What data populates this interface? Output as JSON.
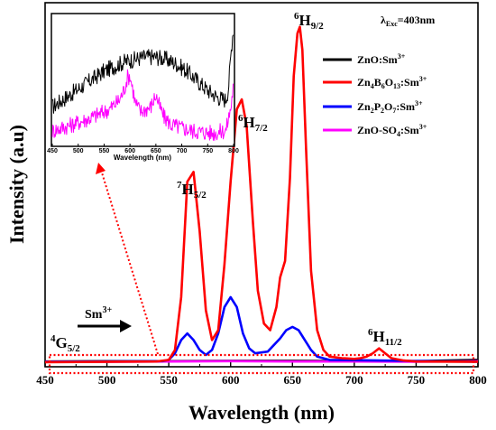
{
  "chart_data": {
    "type": "line",
    "xlabel": "Wavelength (nm)",
    "ylabel": "Intensity (a.u)",
    "xlim": [
      450,
      800
    ],
    "ylim": [
      0,
      1
    ],
    "x_ticks": [
      450,
      500,
      550,
      600,
      650,
      700,
      750,
      800
    ],
    "y_ticks_shown": false,
    "grid": false,
    "excitation": {
      "lambda": "λ",
      "sub": "Exc",
      "value": "=403nm"
    },
    "peak_labels": [
      {
        "pre": "7",
        "main": "H",
        "sub": "5/2",
        "x": 570
      },
      {
        "pre": "6",
        "main": "H",
        "sub": "7/2",
        "x": 609
      },
      {
        "pre": "6",
        "main": "H",
        "sub": "9/2",
        "x": 656
      },
      {
        "pre": "6",
        "main": "H",
        "sub": "11/2",
        "x": 720
      }
    ],
    "ground_state": {
      "pre": "4",
      "main": "G",
      "sub": "5/2"
    },
    "ion_label": {
      "main": "Sm",
      "sup": "3+"
    },
    "series": [
      {
        "name": "ZnO:Sm3+",
        "legend": {
          "main": "ZnO:Sm",
          "sup": "3+"
        },
        "color": "#000000",
        "x": [
          450,
          500,
          550,
          600,
          650,
          700,
          750,
          800
        ],
        "y": [
          0.005,
          0.006,
          0.006,
          0.007,
          0.007,
          0.006,
          0.006,
          0.01
        ]
      },
      {
        "name": "Zn4B6O13:Sm3+",
        "legend": {
          "parts": [
            "Zn",
            "4",
            "B",
            "6",
            "O",
            "13",
            ":Sm"
          ],
          "sup": "3+"
        },
        "color": "#ff0000",
        "x": [
          450,
          540,
          550,
          555,
          560,
          565,
          570,
          575,
          580,
          585,
          590,
          595,
          600,
          605,
          609,
          613,
          618,
          622,
          627,
          632,
          637,
          640,
          644,
          648,
          651,
          654,
          656,
          658,
          661,
          665,
          670,
          675,
          680,
          690,
          700,
          705,
          710,
          715,
          720,
          725,
          730,
          740,
          750,
          800
        ],
        "y": [
          0.003,
          0.005,
          0.01,
          0.04,
          0.2,
          0.55,
          0.58,
          0.4,
          0.16,
          0.07,
          0.1,
          0.3,
          0.55,
          0.77,
          0.8,
          0.72,
          0.43,
          0.22,
          0.12,
          0.1,
          0.17,
          0.26,
          0.31,
          0.56,
          0.87,
          1.0,
          1.02,
          0.95,
          0.65,
          0.28,
          0.1,
          0.04,
          0.02,
          0.015,
          0.013,
          0.015,
          0.02,
          0.03,
          0.045,
          0.03,
          0.015,
          0.008,
          0.005,
          0.004
        ]
      },
      {
        "name": "Zn2P2O7:Sm3+",
        "legend": {
          "parts": [
            "Zn",
            "2",
            "P",
            "2",
            "O",
            "7",
            ":Sm"
          ],
          "sup": "3+"
        },
        "color": "#0000ff",
        "x": [
          450,
          545,
          550,
          555,
          560,
          565,
          570,
          575,
          580,
          585,
          590,
          595,
          600,
          605,
          610,
          615,
          620,
          630,
          640,
          645,
          650,
          655,
          660,
          665,
          670,
          680,
          800
        ],
        "y": [
          0.004,
          0.006,
          0.01,
          0.03,
          0.07,
          0.09,
          0.07,
          0.04,
          0.025,
          0.04,
          0.09,
          0.17,
          0.2,
          0.17,
          0.09,
          0.045,
          0.03,
          0.035,
          0.075,
          0.1,
          0.11,
          0.1,
          0.07,
          0.04,
          0.02,
          0.01,
          0.004
        ]
      },
      {
        "name": "ZnO-SO4:Sm3+",
        "legend": {
          "parts": [
            "ZnO-SO",
            "4",
            ":Sm"
          ],
          "sup": "3+"
        },
        "color": "#ff00ff",
        "x": [
          450,
          500,
          550,
          600,
          650,
          700,
          750,
          800
        ],
        "y": [
          0.004,
          0.004,
          0.005,
          0.006,
          0.005,
          0.005,
          0.004,
          0.006
        ]
      }
    ],
    "inset": {
      "xlabel": "Wavelength (nm)",
      "xlim": [
        450,
        800
      ],
      "x_ticks": [
        450,
        500,
        550,
        600,
        650,
        700,
        750,
        800
      ],
      "series": [
        {
          "name": "ZnO:Sm3+",
          "color": "#000000",
          "x": [
            450,
            470,
            490,
            510,
            530,
            550,
            570,
            590,
            610,
            630,
            650,
            670,
            690,
            710,
            730,
            750,
            770,
            785,
            790,
            795,
            800
          ],
          "y": [
            0.3,
            0.36,
            0.42,
            0.48,
            0.54,
            0.6,
            0.64,
            0.68,
            0.7,
            0.72,
            0.72,
            0.7,
            0.66,
            0.6,
            0.52,
            0.44,
            0.38,
            0.36,
            0.45,
            0.75,
            1.0
          ]
        },
        {
          "name": "ZnO-SO4:Sm3+",
          "color": "#ff00ff",
          "x": [
            450,
            480,
            520,
            560,
            580,
            590,
            595,
            600,
            605,
            610,
            620,
            640,
            650,
            655,
            665,
            680,
            720,
            760,
            785,
            795,
            800
          ],
          "y": [
            0.1,
            0.14,
            0.2,
            0.28,
            0.36,
            0.46,
            0.55,
            0.56,
            0.46,
            0.34,
            0.26,
            0.3,
            0.4,
            0.33,
            0.22,
            0.15,
            0.1,
            0.08,
            0.1,
            0.3,
            0.5
          ]
        }
      ]
    }
  }
}
